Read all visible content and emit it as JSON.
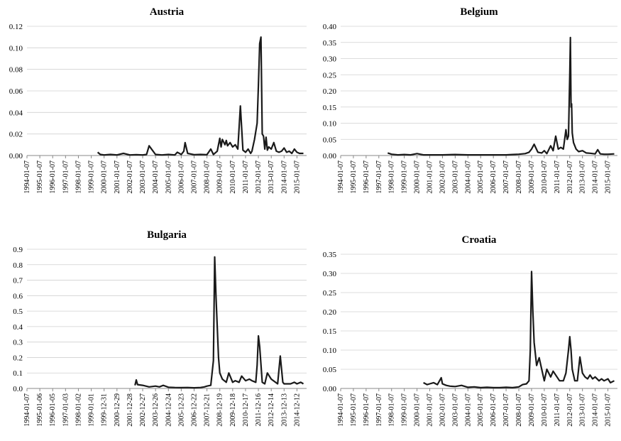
{
  "chart_data": [
    {
      "type": "line",
      "title": "Austria",
      "ylim": [
        0,
        0.12
      ],
      "yticks": [
        "0.00",
        "0.02",
        "0.04",
        "0.06",
        "0.08",
        "0.10",
        "0.12"
      ],
      "xticks": [
        "1994-01-07",
        "1995-01-07",
        "1996-01-07",
        "1997-01-07",
        "1998-01-07",
        "1999-01-07",
        "2000-01-07",
        "2001-01-07",
        "2002-01-07",
        "2003-01-07",
        "2004-01-07",
        "2005-01-07",
        "2006-01-07",
        "2007-01-07",
        "2008-01-07",
        "2009-01-07",
        "2010-01-07",
        "2011-01-07",
        "2012-01-07",
        "2013-01-07",
        "2014-01-07",
        "2015-01-07"
      ],
      "grid": true,
      "series": [
        {
          "x": [
            1999.5,
            1999.7,
            2000.0,
            2000.5,
            2001.0,
            2001.5,
            2002.0,
            2002.5,
            2003.0,
            2003.3,
            2003.5,
            2004.0,
            2004.5,
            2005.0,
            2005.5,
            2005.7,
            2006.0,
            2006.2,
            2006.3,
            2006.5,
            2007.0,
            2007.5,
            2008.0,
            2008.3,
            2008.5,
            2008.8,
            2009.0,
            2009.1,
            2009.2,
            2009.4,
            2009.5,
            2009.6,
            2009.8,
            2010.0,
            2010.2,
            2010.4,
            2010.6,
            2010.8,
            2011.0,
            2011.2,
            2011.4,
            2011.5,
            2011.7,
            2011.9,
            2012.0,
            2012.1,
            2012.2,
            2012.3,
            2012.4,
            2012.5,
            2012.6,
            2012.7,
            2012.8,
            2013.0,
            2013.2,
            2013.4,
            2013.6,
            2013.8,
            2014.0,
            2014.2,
            2014.4,
            2014.6,
            2014.8,
            2015.0,
            2015.2,
            2015.5
          ],
          "y": [
            0.003,
            0.001,
            0.0005,
            0.001,
            0.0005,
            0.002,
            0.0005,
            0.0008,
            0.0005,
            0.001,
            0.009,
            0.001,
            0.0005,
            0.001,
            0.0005,
            0.003,
            0.001,
            0.004,
            0.012,
            0.002,
            0.0008,
            0.001,
            0.0008,
            0.006,
            0.001,
            0.004,
            0.016,
            0.008,
            0.015,
            0.01,
            0.014,
            0.009,
            0.012,
            0.008,
            0.01,
            0.006,
            0.046,
            0.005,
            0.003,
            0.006,
            0.002,
            0.004,
            0.015,
            0.03,
            0.065,
            0.104,
            0.11,
            0.02,
            0.018,
            0.006,
            0.017,
            0.005,
            0.008,
            0.006,
            0.012,
            0.004,
            0.003,
            0.004,
            0.007,
            0.003,
            0.004,
            0.002,
            0.006,
            0.003,
            0.002,
            0.002
          ]
        }
      ]
    },
    {
      "type": "line",
      "title": "Belgium",
      "ylim": [
        0,
        0.4
      ],
      "yticks": [
        "0.00",
        "0.05",
        "0.10",
        "0.15",
        "0.20",
        "0.25",
        "0.30",
        "0.35",
        "0.40"
      ],
      "xticks": [
        "1994-01-07",
        "1995-01-07",
        "1996-01-07",
        "1997-01-07",
        "1998-01-07",
        "1999-01-07",
        "2000-01-07",
        "2001-01-07",
        "2002-01-07",
        "2003-01-07",
        "2004-01-07",
        "2005-01-07",
        "2006-01-07",
        "2007-01-07",
        "2008-01-07",
        "2009-01-07",
        "2010-01-07",
        "2011-01-07",
        "2012-01-07",
        "2013-01-07",
        "2014-01-07",
        "2015-01-07"
      ],
      "grid": true,
      "series": [
        {
          "x": [
            1997.7,
            1998.0,
            1998.5,
            1999.0,
            1999.5,
            2000.0,
            2000.5,
            2001.0,
            2002.0,
            2003.0,
            2004.0,
            2005.0,
            2006.0,
            2007.0,
            2007.5,
            2008.0,
            2008.5,
            2008.8,
            2009.0,
            2009.2,
            2009.5,
            2009.8,
            2010.0,
            2010.2,
            2010.5,
            2010.7,
            2010.9,
            2011.1,
            2011.3,
            2011.5,
            2011.7,
            2011.8,
            2011.9,
            2012.0,
            2012.05,
            2012.1,
            2012.15,
            2012.2,
            2012.3,
            2012.5,
            2012.7,
            2013.0,
            2013.3,
            2013.6,
            2014.0,
            2014.2,
            2014.4,
            2014.7,
            2015.0,
            2015.5
          ],
          "y": [
            0.008,
            0.004,
            0.002,
            0.003,
            0.002,
            0.006,
            0.002,
            0.002,
            0.002,
            0.003,
            0.002,
            0.002,
            0.002,
            0.002,
            0.003,
            0.004,
            0.006,
            0.01,
            0.02,
            0.035,
            0.01,
            0.008,
            0.015,
            0.006,
            0.03,
            0.015,
            0.06,
            0.02,
            0.025,
            0.02,
            0.08,
            0.05,
            0.06,
            0.25,
            0.365,
            0.15,
            0.16,
            0.07,
            0.04,
            0.02,
            0.012,
            0.015,
            0.008,
            0.007,
            0.005,
            0.018,
            0.005,
            0.004,
            0.004,
            0.005
          ]
        }
      ]
    },
    {
      "type": "line",
      "title": "Bulgaria",
      "ylim": [
        0,
        0.9
      ],
      "yticks": [
        "0.0",
        "0.1",
        "0.2",
        "0.3",
        "0.4",
        "0.5",
        "0.6",
        "0.7",
        "0.8",
        "0.9"
      ],
      "xticks": [
        "1994-01-07",
        "1995-01-06",
        "1996-01-05",
        "1997-01-03",
        "1998-01-02",
        "1999-01-01",
        "1999-12-31",
        "2000-12-29",
        "2001-12-28",
        "2002-12-27",
        "2003-12-26",
        "2004-12-24",
        "2005-12-23",
        "2006-12-22",
        "2007-12-21",
        "2008-12-19",
        "2009-12-18",
        "2010-12-17",
        "2011-12-16",
        "2012-12-14",
        "2013-12-13",
        "2014-12-12"
      ],
      "grid": true,
      "series": [
        {
          "x": [
            2002.4,
            2002.5,
            2002.6,
            2003.0,
            2003.5,
            2004.0,
            2004.3,
            2004.6,
            2005.0,
            2005.5,
            2006.0,
            2006.5,
            2007.0,
            2007.5,
            2007.8,
            2008.0,
            2008.3,
            2008.5,
            2008.6,
            2008.7,
            2008.8,
            2008.9,
            2009.0,
            2009.2,
            2009.5,
            2009.7,
            2010.0,
            2010.2,
            2010.5,
            2010.7,
            2011.0,
            2011.3,
            2011.5,
            2011.8,
            2011.9,
            2012.0,
            2012.1,
            2012.3,
            2012.5,
            2012.7,
            2013.0,
            2013.5,
            2013.7,
            2013.9,
            2014.0,
            2014.3,
            2014.5,
            2014.8,
            2015.0,
            2015.3,
            2015.5
          ],
          "y": [
            0.02,
            0.055,
            0.025,
            0.02,
            0.01,
            0.015,
            0.01,
            0.02,
            0.008,
            0.006,
            0.005,
            0.006,
            0.004,
            0.006,
            0.01,
            0.015,
            0.02,
            0.18,
            0.85,
            0.6,
            0.4,
            0.2,
            0.1,
            0.06,
            0.04,
            0.1,
            0.04,
            0.05,
            0.04,
            0.08,
            0.05,
            0.06,
            0.05,
            0.04,
            0.15,
            0.34,
            0.27,
            0.04,
            0.03,
            0.1,
            0.06,
            0.03,
            0.21,
            0.04,
            0.03,
            0.03,
            0.03,
            0.04,
            0.03,
            0.04,
            0.03
          ]
        }
      ]
    },
    {
      "type": "line",
      "title": "Croatia",
      "ylim": [
        0,
        0.35
      ],
      "yticks": [
        "0.00",
        "0.05",
        "0.10",
        "0.15",
        "0.20",
        "0.25",
        "0.30",
        "0.35"
      ],
      "xticks": [
        "1994-01-07",
        "1995-01-07",
        "1996-01-07",
        "1997-01-07",
        "1998-01-07",
        "1999-01-07",
        "2000-01-07",
        "2001-01-07",
        "2002-01-07",
        "2003-01-07",
        "2004-01-07",
        "2005-01-07",
        "2006-01-07",
        "2007-01-07",
        "2008-01-07",
        "2009-01-07",
        "2010-01-07",
        "2011-01-07",
        "2012-01-07",
        "2013-01-07",
        "2014-01-07",
        "2015-01-07"
      ],
      "grid": true,
      "series": [
        {
          "x": [
            2000.5,
            2000.8,
            2001.0,
            2001.3,
            2001.6,
            2001.9,
            2002.0,
            2002.3,
            2002.6,
            2003.0,
            2003.5,
            2004.0,
            2004.5,
            2005.0,
            2005.5,
            2006.0,
            2006.5,
            2007.0,
            2007.5,
            2008.0,
            2008.3,
            2008.6,
            2008.8,
            2008.9,
            2009.0,
            2009.1,
            2009.2,
            2009.4,
            2009.6,
            2009.8,
            2010.0,
            2010.2,
            2010.5,
            2010.7,
            2011.0,
            2011.2,
            2011.5,
            2011.7,
            2011.9,
            2012.0,
            2012.1,
            2012.2,
            2012.4,
            2012.6,
            2012.8,
            2013.0,
            2013.2,
            2013.4,
            2013.6,
            2013.8,
            2014.0,
            2014.3,
            2014.5,
            2014.7,
            2015.0,
            2015.2,
            2015.5
          ],
          "y": [
            0.015,
            0.01,
            0.012,
            0.015,
            0.01,
            0.028,
            0.012,
            0.008,
            0.006,
            0.005,
            0.008,
            0.003,
            0.004,
            0.002,
            0.003,
            0.002,
            0.002,
            0.003,
            0.002,
            0.004,
            0.01,
            0.012,
            0.02,
            0.1,
            0.305,
            0.2,
            0.12,
            0.06,
            0.08,
            0.05,
            0.02,
            0.05,
            0.03,
            0.045,
            0.03,
            0.02,
            0.02,
            0.04,
            0.1,
            0.135,
            0.1,
            0.05,
            0.02,
            0.02,
            0.082,
            0.04,
            0.03,
            0.025,
            0.035,
            0.025,
            0.03,
            0.02,
            0.025,
            0.02,
            0.025,
            0.015,
            0.02
          ]
        }
      ]
    }
  ]
}
